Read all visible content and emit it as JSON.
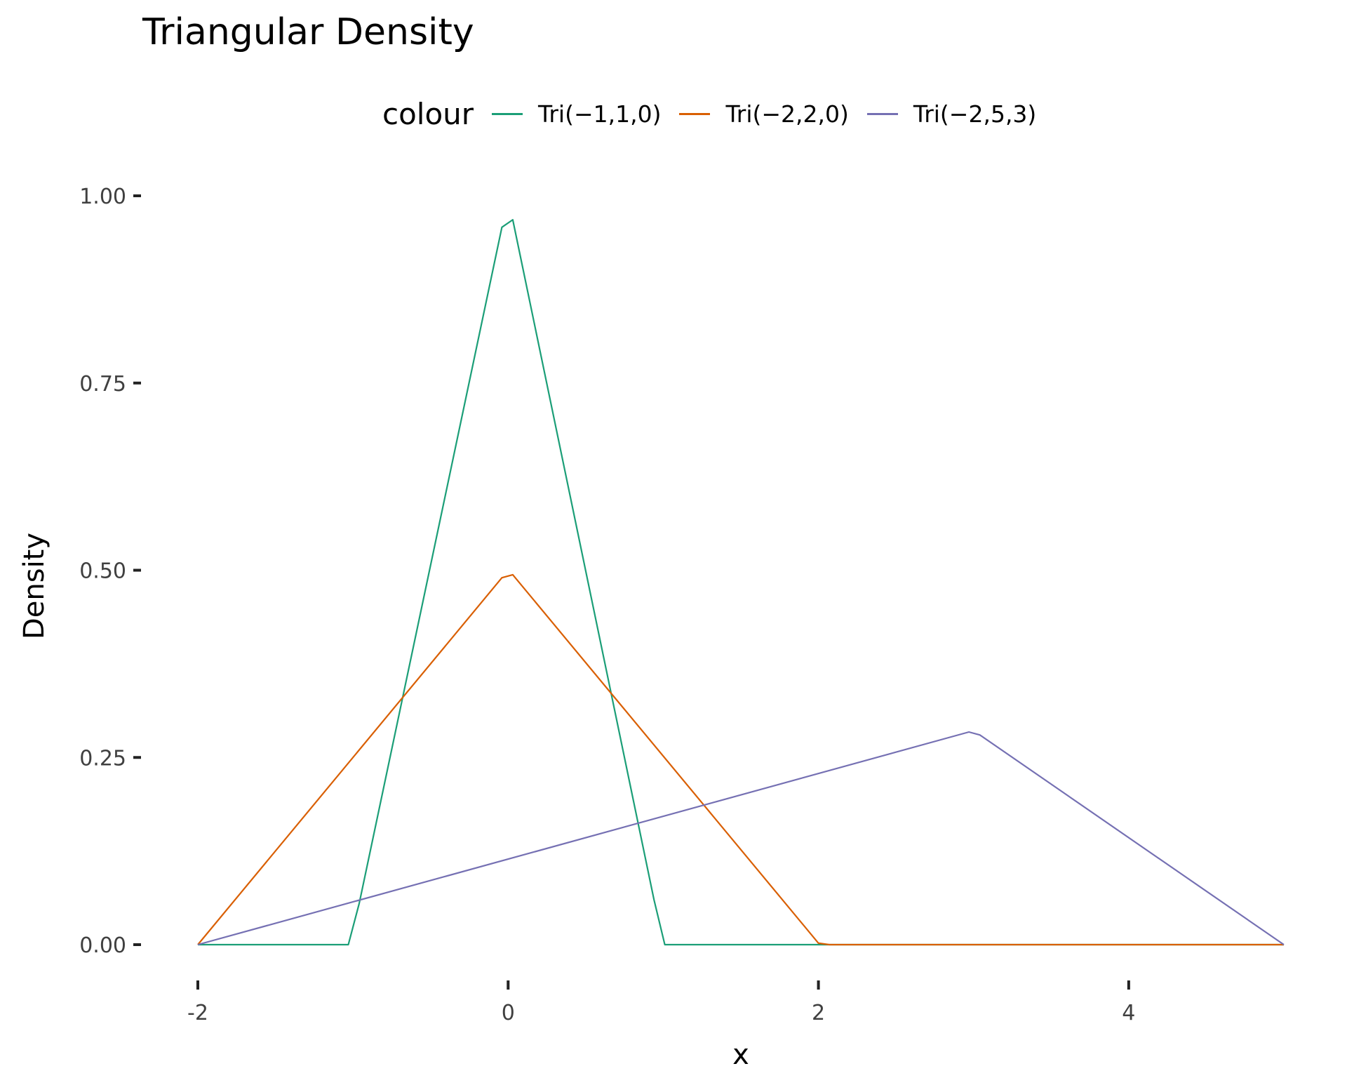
{
  "chart_data": {
    "type": "line",
    "title": "Triangular Density",
    "xlabel": "x",
    "ylabel": "Density",
    "xlim": [
      -2,
      5
    ],
    "ylim": [
      0,
      1
    ],
    "x_ticks": [
      -2,
      0,
      2,
      4
    ],
    "x_tick_labels": [
      "-2",
      "0",
      "2",
      "4"
    ],
    "y_ticks": [
      0,
      0.25,
      0.5,
      0.75,
      1
    ],
    "y_tick_labels": [
      "0.00",
      "0.25",
      "0.50",
      "0.75",
      "1.00"
    ],
    "grid": false,
    "legend": {
      "title": "colour",
      "placement": "top"
    },
    "series": [
      {
        "name": "Tri(−1,1,0)",
        "color": "#1b9e77",
        "x": [
          -2,
          -1.03,
          -0.96,
          -0.04,
          0.03,
          0.94,
          1.01,
          5
        ],
        "y": [
          0,
          0,
          0.055,
          0.958,
          0.968,
          0.06,
          0,
          0
        ]
      },
      {
        "name": "Tri(−2,2,0)",
        "color": "#d95f02",
        "x": [
          -2,
          -0.04,
          0.03,
          2.0,
          2.07,
          5
        ],
        "y": [
          0,
          0.49,
          0.494,
          0.002,
          0,
          0
        ]
      },
      {
        "name": "Tri(−2,5,3)",
        "color": "#7570b3",
        "x": [
          -2,
          2.97,
          3.04,
          5
        ],
        "y": [
          0,
          0.284,
          0.28,
          0
        ]
      }
    ]
  }
}
